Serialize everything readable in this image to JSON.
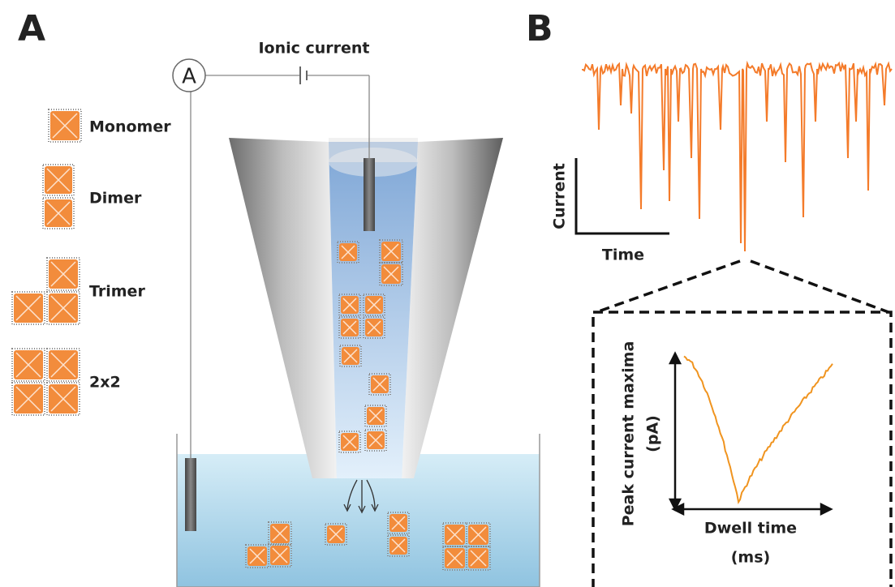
{
  "panel_a": {
    "label": "A",
    "ammeter": "A",
    "circuit_label": "Ionic current",
    "legend": [
      "Monomer",
      "Dimer",
      "Trimer",
      "2x2"
    ]
  },
  "panel_b": {
    "label": "B",
    "y_axis": "Current",
    "x_axis": "Time",
    "inset": {
      "y_axis": [
        "Peak current maxima",
        "(pA)"
      ],
      "x_axis": [
        "Dwell time",
        "(ms)"
      ]
    }
  }
}
